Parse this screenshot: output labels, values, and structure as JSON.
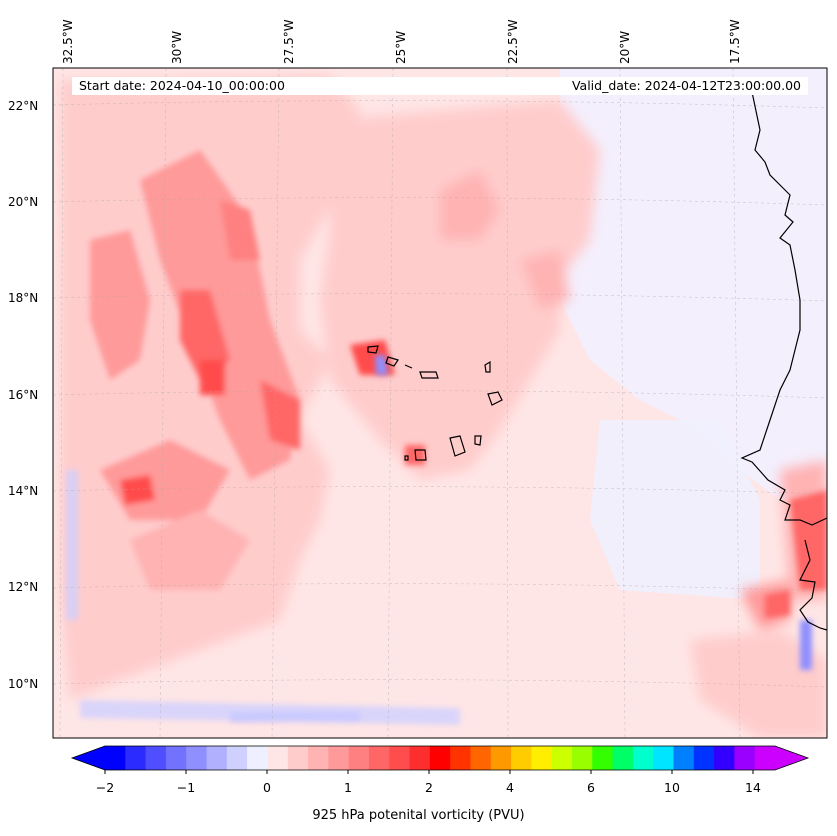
{
  "map": {
    "start_date": "Start date: 2024-04-10_00:00:00",
    "valid_date": "Valid_date: 2024-04-12T23:00:00.00",
    "lon_labels": [
      "32.5°W",
      "30°W",
      "27.5°W",
      "25°W",
      "22.5°W",
      "20°W",
      "17.5°W"
    ],
    "lat_labels": [
      "22°N",
      "20°N",
      "18°N",
      "16°N",
      "14°N",
      "12°N",
      "10°N"
    ]
  },
  "colorbar": {
    "label": "925 hPa potenital vorticity (PVU)",
    "ticks": [
      "−2",
      "−1",
      "0",
      "1",
      "2",
      "4",
      "6",
      "10",
      "14"
    ],
    "colors": [
      "#0000ff",
      "#2b2bff",
      "#4f4fff",
      "#7272ff",
      "#8f8fff",
      "#b0b0ff",
      "#d0d0ff",
      "#eef0ff",
      "#ffe6e6",
      "#ffcccc",
      "#ffb3b3",
      "#ff9a9a",
      "#ff8080",
      "#ff6666",
      "#ff4c4c",
      "#ff2e2e",
      "#ff0000",
      "#ff3300",
      "#ff6600",
      "#ff9900",
      "#ffcc00",
      "#ffee00",
      "#ccff00",
      "#99ff00",
      "#33ff00",
      "#00ff66",
      "#00ffcc",
      "#00e5ff",
      "#0080ff",
      "#0033ff",
      "#3300ff",
      "#9900ff",
      "#cc00ff"
    ],
    "min_color": "#0000ff",
    "max_color": "#cc00ff"
  },
  "colors": {
    "background_pv": "#ffe6e6",
    "coastline": "#000000"
  }
}
